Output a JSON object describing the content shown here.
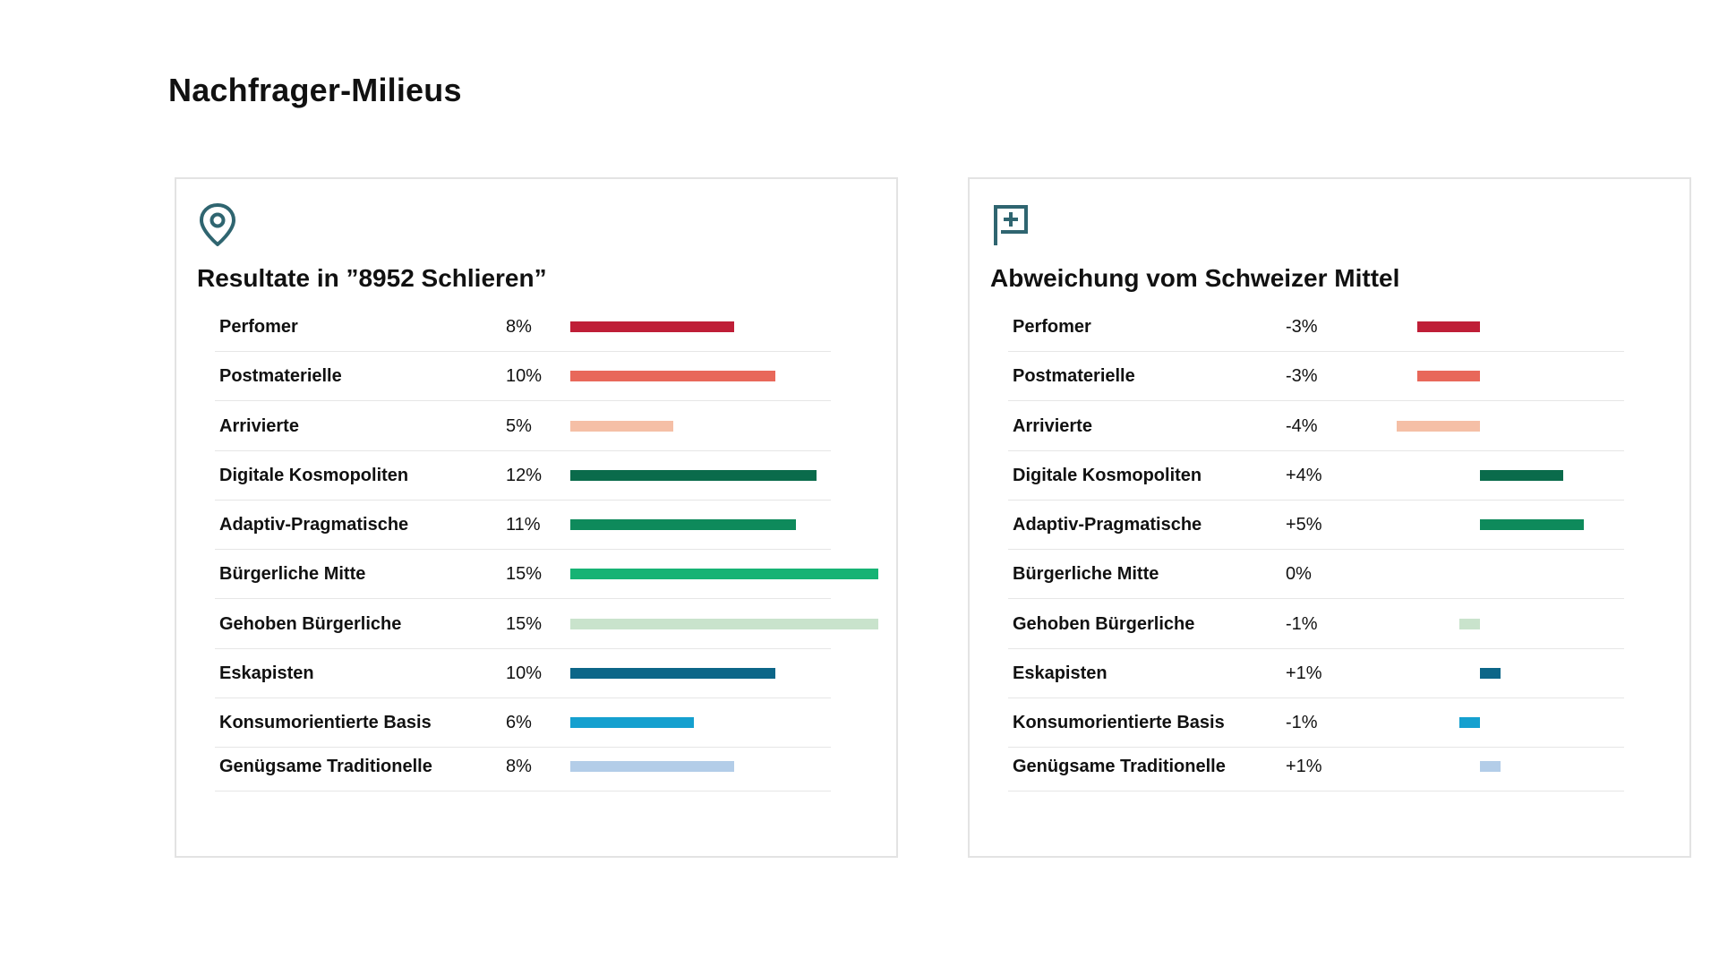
{
  "page": {
    "title": "Nachfrager-Milieus"
  },
  "colors": {
    "icon": "#2f6570",
    "categories": [
      "#bf1e37",
      "#e8685a",
      "#f5bfa6",
      "#0a6b4b",
      "#0e8a5b",
      "#16b374",
      "#c9e3cc",
      "#0c6688",
      "#15a0cf",
      "#b3cde8"
    ]
  },
  "chart_data": [
    {
      "type": "bar",
      "orientation": "horizontal",
      "title": "Resultate in ”8952 Schlieren”",
      "icon": "location-pin-icon",
      "categories": [
        "Perfomer",
        "Postmaterielle",
        "Arrivierte",
        "Digitale Kosmopoliten",
        "Adaptiv-Pragmatische",
        "Bürgerliche Mitte",
        "Gehoben Bürgerliche",
        "Eskapisten",
        "Konsumorientierte Basis",
        "Genügsame Traditionelle"
      ],
      "values": [
        8,
        10,
        5,
        12,
        11,
        15,
        15,
        10,
        6,
        8
      ],
      "value_labels": [
        "8%",
        "10%",
        "5%",
        "12%",
        "11%",
        "15%",
        "15%",
        "10%",
        "6%",
        "8%"
      ],
      "unit": "%",
      "xlim": [
        0,
        15
      ]
    },
    {
      "type": "bar",
      "orientation": "horizontal",
      "diverging": true,
      "title": "Abweichung vom Schweizer Mittel",
      "icon": "flag-plus-icon",
      "categories": [
        "Perfomer",
        "Postmaterielle",
        "Arrivierte",
        "Digitale Kosmopoliten",
        "Adaptiv-Pragmatische",
        "Bürgerliche Mitte",
        "Gehoben Bürgerliche",
        "Eskapisten",
        "Konsumorientierte Basis",
        "Genügsame Traditionelle"
      ],
      "values": [
        -3,
        -3,
        -4,
        4,
        5,
        0,
        -1,
        1,
        -1,
        1
      ],
      "value_labels": [
        "-3%",
        "-3%",
        "-4%",
        "+4%",
        "+5%",
        "0%",
        "-1%",
        "+1%",
        "-1%",
        "+1%"
      ],
      "unit": "%",
      "xlim": [
        -4,
        5
      ]
    }
  ]
}
